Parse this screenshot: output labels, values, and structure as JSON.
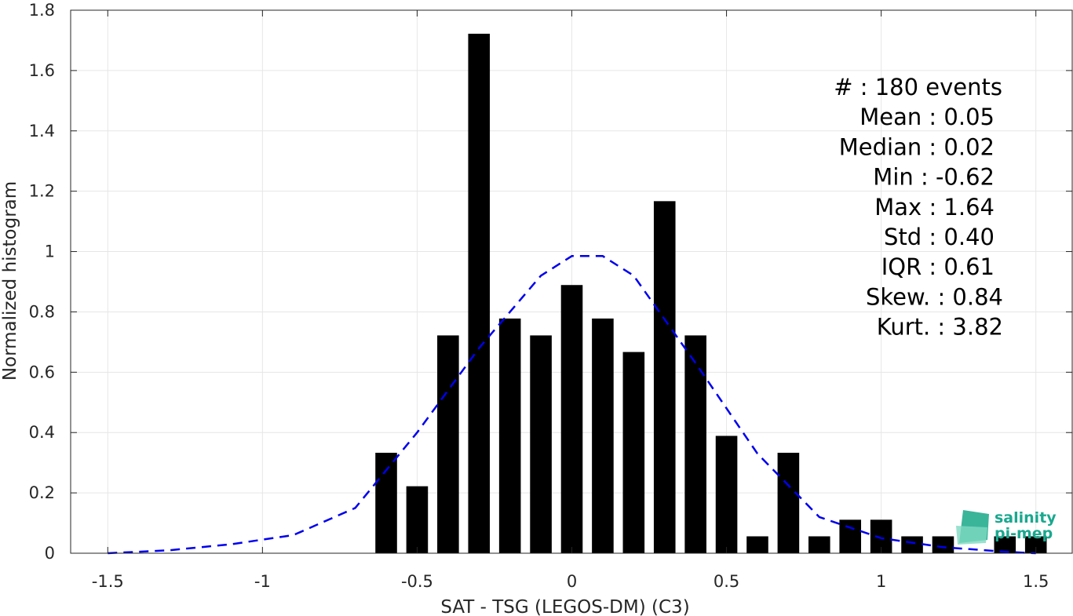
{
  "chart_data": {
    "type": "bar",
    "xlabel": "SAT - TSG (LEGOS-DM) (C3)",
    "ylabel": "Normalized histogram",
    "xlim": [
      -1.62,
      1.62
    ],
    "ylim": [
      0,
      1.8
    ],
    "grid": true,
    "x_ticks": [
      -1.5,
      -1,
      -0.5,
      0,
      0.5,
      1,
      1.5
    ],
    "x_tick_labels": [
      "-1.5",
      "-1",
      "-0.5",
      "0",
      "0.5",
      "1",
      "1.5"
    ],
    "y_ticks": [
      0,
      0.2,
      0.4,
      0.6,
      0.8,
      1,
      1.2,
      1.4,
      1.6,
      1.8
    ],
    "y_tick_labels": [
      "0",
      "0.2",
      "0.4",
      "0.6",
      "0.8",
      "1",
      "1.2",
      "1.4",
      "1.6",
      "1.8"
    ],
    "bar_width": 0.07,
    "bar_color": "#000000",
    "bars": {
      "x": [
        -0.6,
        -0.5,
        -0.4,
        -0.3,
        -0.2,
        -0.1,
        0.0,
        0.1,
        0.2,
        0.3,
        0.4,
        0.5,
        0.6,
        0.7,
        0.8,
        0.9,
        1.0,
        1.1,
        1.2,
        1.4,
        1.5
      ],
      "values": [
        0.333,
        0.222,
        0.722,
        1.722,
        0.778,
        0.722,
        0.889,
        0.778,
        0.667,
        1.167,
        0.722,
        0.389,
        0.056,
        0.333,
        0.056,
        0.111,
        0.111,
        0.056,
        0.056,
        0.056,
        0.056
      ]
    },
    "fit_curve": {
      "style": "dashed",
      "color": "#0000ee",
      "x": [
        -1.5,
        -1.3,
        -1.1,
        -0.9,
        -0.7,
        -0.5,
        -0.3,
        -0.1,
        0.0,
        0.1,
        0.2,
        0.4,
        0.6,
        0.8,
        1.0,
        1.2,
        1.4,
        1.5
      ],
      "y": [
        0.0,
        0.01,
        0.03,
        0.06,
        0.15,
        0.4,
        0.68,
        0.92,
        0.985,
        0.985,
        0.92,
        0.63,
        0.33,
        0.12,
        0.05,
        0.02,
        0.005,
        0.0
      ]
    },
    "stats_lines": [
      "#  : 180 events",
      "Mean : 0.05",
      "Median : 0.02",
      "Min : -0.62",
      "Max : 1.64",
      "Std : 0.40",
      "IQR : 0.61",
      "Skew. : 0.84",
      "Kurt. : 3.82"
    ]
  },
  "logo": {
    "line1": "salinity",
    "line2": "pi-mep"
  }
}
